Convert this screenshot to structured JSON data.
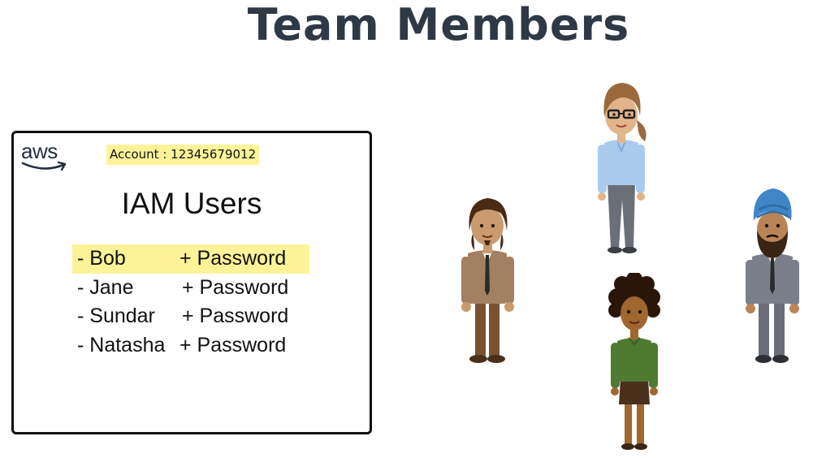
{
  "page": {
    "title": "Team Members"
  },
  "card": {
    "logo_text": "aws",
    "account_label": "Account : 12345679012",
    "heading": "IAM Users",
    "users": [
      {
        "name": "- Bob",
        "credential": "+ Password",
        "highlighted": true
      },
      {
        "name": "- Jane",
        "credential": "+ Password",
        "highlighted": false
      },
      {
        "name": "- Sundar",
        "credential": "+ Password",
        "highlighted": false
      },
      {
        "name": "- Natasha",
        "credential": "+ Password",
        "highlighted": false
      }
    ]
  },
  "colors": {
    "title": "#2f3845",
    "highlight": "#fff39a",
    "border": "#111111"
  },
  "illustrations": [
    "man-brown-suit",
    "woman-glasses-blue-shirt",
    "woman-curly-hair-green-sweater",
    "man-turban-grey-suit"
  ]
}
